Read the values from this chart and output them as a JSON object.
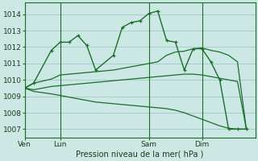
{
  "bg_color": "#cce8e4",
  "grid_color": "#aacccc",
  "line_color": "#1a6e2a",
  "title": "Pression niveau de la mer( hPa )",
  "ylim": [
    1006.5,
    1014.7
  ],
  "yticks": [
    1007,
    1008,
    1009,
    1010,
    1011,
    1012,
    1013,
    1014
  ],
  "day_labels": [
    "Ven",
    "Lun",
    "Sam",
    "Dim"
  ],
  "day_positions": [
    0,
    4,
    14,
    20
  ],
  "xlim": [
    0,
    26
  ],
  "series": [
    {
      "x": [
        0,
        1,
        3,
        4,
        5,
        6,
        7,
        8,
        10,
        11,
        12,
        13,
        14,
        15,
        16,
        17,
        18,
        19,
        20,
        21,
        22,
        23,
        24,
        25
      ],
      "y": [
        1009.5,
        1009.8,
        1011.8,
        1012.3,
        1012.3,
        1012.7,
        1012.1,
        1010.6,
        1011.5,
        1013.2,
        1013.5,
        1013.6,
        1014.05,
        1014.2,
        1012.4,
        1012.3,
        1010.6,
        1011.9,
        1011.9,
        1011.1,
        1010.0,
        1007.0,
        1007.0,
        1007.0
      ],
      "marker": true,
      "lw": 1.0
    },
    {
      "x": [
        0,
        1,
        3,
        4,
        5,
        6,
        7,
        8,
        9,
        10,
        11,
        12,
        13,
        14,
        15,
        16,
        17,
        18,
        19,
        20,
        21,
        22,
        23,
        24,
        25
      ],
      "y": [
        1009.5,
        1009.8,
        1010.05,
        1010.3,
        1010.35,
        1010.4,
        1010.45,
        1010.5,
        1010.55,
        1010.6,
        1010.7,
        1010.8,
        1010.9,
        1011.0,
        1011.1,
        1011.5,
        1011.7,
        1011.75,
        1011.9,
        1011.95,
        1011.8,
        1011.7,
        1011.5,
        1011.1,
        1007.0
      ],
      "marker": false,
      "lw": 0.9
    },
    {
      "x": [
        0,
        1,
        3,
        4,
        5,
        6,
        7,
        8,
        9,
        10,
        11,
        12,
        13,
        14,
        15,
        16,
        17,
        18,
        19,
        20,
        21,
        22,
        23,
        24,
        25
      ],
      "y": [
        1009.5,
        1009.4,
        1009.6,
        1009.65,
        1009.7,
        1009.75,
        1009.8,
        1009.85,
        1009.9,
        1009.95,
        1010.0,
        1010.05,
        1010.1,
        1010.15,
        1010.2,
        1010.25,
        1010.3,
        1010.35,
        1010.35,
        1010.3,
        1010.2,
        1010.1,
        1010.0,
        1009.9,
        1007.0
      ],
      "marker": false,
      "lw": 0.9
    },
    {
      "x": [
        0,
        1,
        3,
        4,
        5,
        6,
        7,
        8,
        9,
        10,
        11,
        12,
        13,
        14,
        15,
        16,
        17,
        18,
        19,
        20,
        21,
        22,
        23,
        24,
        25
      ],
      "y": [
        1009.5,
        1009.3,
        1009.15,
        1009.05,
        1008.95,
        1008.85,
        1008.75,
        1008.65,
        1008.6,
        1008.55,
        1008.5,
        1008.45,
        1008.4,
        1008.35,
        1008.3,
        1008.25,
        1008.15,
        1008.0,
        1007.8,
        1007.6,
        1007.4,
        1007.2,
        1007.05,
        1007.0,
        1007.0
      ],
      "marker": false,
      "lw": 0.9
    }
  ]
}
